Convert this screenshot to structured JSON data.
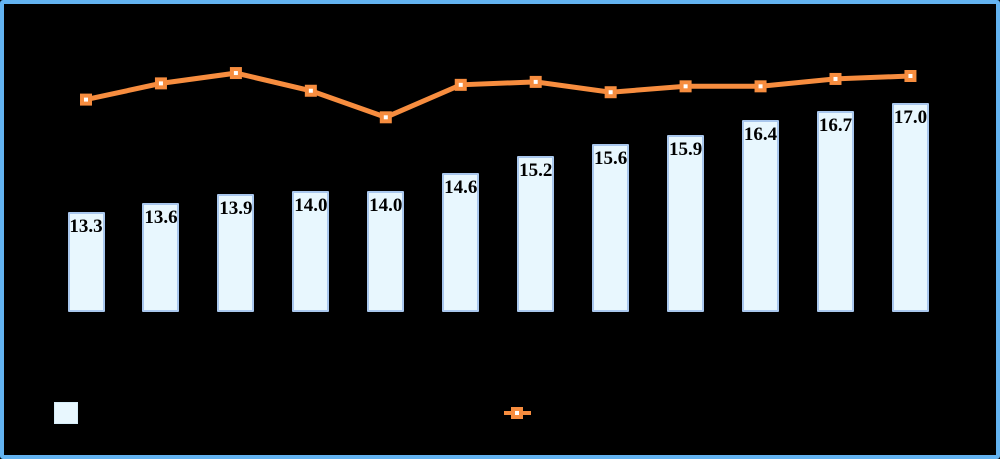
{
  "window": {
    "background": "#000000",
    "frame_border_color": "#63B3F1"
  },
  "chart_data": {
    "type": "bar",
    "combo": "bar+line",
    "n_points": 12,
    "title": "",
    "xlabel": "",
    "ylabel": "",
    "axes_visible": false,
    "gridlines": false,
    "bar_series": {
      "values": [
        13.3,
        13.6,
        13.9,
        14.0,
        14.0,
        14.6,
        15.2,
        15.6,
        15.9,
        16.4,
        16.7,
        17.0
      ],
      "data_labels": [
        "13.3",
        "13.6",
        "13.9",
        "14.0",
        "14.0",
        "14.6",
        "15.2",
        "15.6",
        "15.9",
        "16.4",
        "16.7",
        "17.0"
      ],
      "fill": "#E8F7FE",
      "border": "#A9C7ED",
      "label_color": "#000000"
    },
    "line_series": {
      "values_estimated": [
        17.1,
        17.65,
        18.0,
        17.4,
        16.5,
        17.6,
        17.7,
        17.35,
        17.55,
        17.55,
        17.8,
        17.9
      ],
      "color": "#F78D3F",
      "marker": "square-with-white-center"
    },
    "value_axis": {
      "value_at_bar_base": 9.9,
      "tick_labels_visible": false
    },
    "legend_position": "bottom"
  },
  "legend": {
    "bar_swatch_color": "#E8F7FE",
    "line_swatch_color": "#F78D3F"
  }
}
